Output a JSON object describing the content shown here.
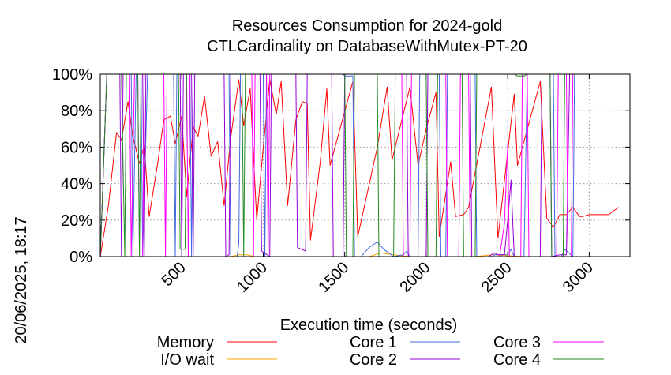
{
  "chart_data": {
    "type": "line",
    "title": "Resources Consumption for 2024-gold",
    "subtitle": "CTLCardinality on DatabaseWithMutex-PT-20",
    "xlabel": "Execution time (seconds)",
    "ylabel": "",
    "timestamp": "20/06/2025, 18:17",
    "xlim": [
      0,
      3250
    ],
    "ylim": [
      0,
      100
    ],
    "x_ticks": [
      500,
      1000,
      1500,
      2000,
      2500,
      3000
    ],
    "y_ticks": [
      0,
      20,
      40,
      60,
      80,
      100
    ],
    "y_tick_labels": [
      "0%",
      "20%",
      "40%",
      "60%",
      "80%",
      "100%"
    ],
    "grid": true,
    "legend_position": "bottom",
    "series": [
      {
        "name": "Memory",
        "color": "#ff0000",
        "points": [
          [
            0,
            0
          ],
          [
            50,
            28
          ],
          [
            100,
            68
          ],
          [
            130,
            64
          ],
          [
            170,
            85
          ],
          [
            200,
            66
          ],
          [
            240,
            51
          ],
          [
            270,
            61
          ],
          [
            300,
            22
          ],
          [
            350,
            50
          ],
          [
            390,
            75
          ],
          [
            430,
            77
          ],
          [
            460,
            62
          ],
          [
            500,
            77
          ],
          [
            530,
            33
          ],
          [
            570,
            71
          ],
          [
            600,
            66
          ],
          [
            640,
            88
          ],
          [
            680,
            55
          ],
          [
            720,
            63
          ],
          [
            760,
            28
          ],
          [
            800,
            65
          ],
          [
            850,
            97
          ],
          [
            880,
            72
          ],
          [
            920,
            92
          ],
          [
            960,
            20
          ],
          [
            1000,
            60
          ],
          [
            1040,
            97
          ],
          [
            1080,
            78
          ],
          [
            1110,
            96
          ],
          [
            1150,
            28
          ],
          [
            1200,
            75
          ],
          [
            1240,
            85
          ],
          [
            1270,
            84
          ],
          [
            1290,
            9
          ],
          [
            1350,
            52
          ],
          [
            1390,
            92
          ],
          [
            1410,
            50
          ],
          [
            1550,
            96
          ],
          [
            1580,
            11
          ],
          [
            1700,
            60
          ],
          [
            1760,
            93
          ],
          [
            1790,
            53
          ],
          [
            1900,
            93
          ],
          [
            1950,
            50
          ],
          [
            2000,
            70
          ],
          [
            2060,
            90
          ],
          [
            2080,
            11
          ],
          [
            2150,
            52
          ],
          [
            2180,
            22
          ],
          [
            2230,
            23
          ],
          [
            2260,
            27
          ],
          [
            2400,
            93
          ],
          [
            2440,
            10
          ],
          [
            2540,
            89
          ],
          [
            2560,
            50
          ],
          [
            2700,
            96
          ],
          [
            2740,
            21
          ],
          [
            2780,
            16
          ],
          [
            2820,
            23
          ],
          [
            2860,
            23
          ],
          [
            2900,
            27
          ],
          [
            2940,
            22
          ],
          [
            2960,
            22
          ],
          [
            3000,
            23
          ],
          [
            3060,
            23
          ],
          [
            3120,
            23
          ],
          [
            3180,
            27
          ]
        ]
      },
      {
        "name": "I/O wait",
        "color": "#ffa500",
        "points": [
          [
            0,
            0
          ],
          [
            200,
            0
          ],
          [
            600,
            0
          ],
          [
            800,
            0
          ],
          [
            850,
            1
          ],
          [
            900,
            1
          ],
          [
            950,
            0
          ],
          [
            1300,
            0
          ],
          [
            1400,
            0
          ],
          [
            1650,
            0
          ],
          [
            1720,
            2
          ],
          [
            1800,
            1
          ],
          [
            1900,
            0
          ],
          [
            2300,
            0
          ],
          [
            2400,
            1
          ],
          [
            2600,
            0
          ],
          [
            2900,
            0
          ],
          [
            3250,
            0
          ]
        ]
      },
      {
        "name": "Core 1",
        "color": "#4169e1",
        "points": [
          [
            0,
            0
          ],
          [
            40,
            100
          ],
          [
            190,
            100
          ],
          [
            200,
            0
          ],
          [
            220,
            100
          ],
          [
            250,
            100
          ],
          [
            260,
            0
          ],
          [
            290,
            100
          ],
          [
            450,
            100
          ],
          [
            460,
            0
          ],
          [
            470,
            100
          ],
          [
            550,
            100
          ],
          [
            560,
            0
          ],
          [
            570,
            100
          ],
          [
            790,
            100
          ],
          [
            800,
            0
          ],
          [
            840,
            0
          ],
          [
            850,
            7
          ],
          [
            860,
            100
          ],
          [
            1000,
            100
          ],
          [
            1010,
            0
          ],
          [
            1020,
            100
          ],
          [
            1440,
            100
          ],
          [
            1490,
            100
          ],
          [
            1500,
            99
          ],
          [
            1550,
            99
          ],
          [
            1560,
            0
          ],
          [
            1600,
            0
          ],
          [
            1650,
            5
          ],
          [
            1700,
            8
          ],
          [
            1740,
            4
          ],
          [
            1800,
            0
          ],
          [
            1860,
            1
          ],
          [
            1880,
            3
          ],
          [
            1900,
            0
          ],
          [
            1950,
            0
          ],
          [
            1960,
            100
          ],
          [
            2080,
            100
          ],
          [
            2090,
            0
          ],
          [
            2120,
            0
          ],
          [
            2130,
            100
          ],
          [
            2300,
            100
          ],
          [
            2310,
            0
          ],
          [
            2400,
            0
          ],
          [
            2420,
            1
          ],
          [
            2500,
            1
          ],
          [
            2520,
            4
          ],
          [
            2540,
            0
          ],
          [
            2600,
            0
          ],
          [
            2620,
            100
          ],
          [
            2780,
            100
          ],
          [
            2790,
            0
          ],
          [
            2830,
            0
          ],
          [
            2850,
            4
          ],
          [
            2900,
            0
          ],
          [
            2910,
            100
          ],
          [
            3250,
            100
          ]
        ]
      },
      {
        "name": "Core 2",
        "color": "#9400d3",
        "points": [
          [
            0,
            0
          ],
          [
            40,
            100
          ],
          [
            120,
            100
          ],
          [
            130,
            0
          ],
          [
            140,
            100
          ],
          [
            260,
            100
          ],
          [
            270,
            0
          ],
          [
            280,
            100
          ],
          [
            490,
            100
          ],
          [
            500,
            0
          ],
          [
            510,
            100
          ],
          [
            560,
            100
          ],
          [
            570,
            0
          ],
          [
            580,
            100
          ],
          [
            760,
            100
          ],
          [
            770,
            0
          ],
          [
            790,
            1
          ],
          [
            800,
            100
          ],
          [
            980,
            100
          ],
          [
            990,
            3
          ],
          [
            1040,
            0
          ],
          [
            1050,
            100
          ],
          [
            1200,
            100
          ],
          [
            1210,
            5
          ],
          [
            1260,
            3
          ],
          [
            1270,
            100
          ],
          [
            1420,
            100
          ],
          [
            1430,
            0
          ],
          [
            1490,
            0
          ],
          [
            1500,
            100
          ],
          [
            1880,
            100
          ],
          [
            1890,
            0
          ],
          [
            2000,
            0
          ],
          [
            2010,
            100
          ],
          [
            2270,
            100
          ],
          [
            2280,
            0
          ],
          [
            2380,
            0
          ],
          [
            2420,
            2
          ],
          [
            2440,
            1
          ],
          [
            2480,
            1
          ],
          [
            2500,
            20
          ],
          [
            2520,
            42
          ],
          [
            2540,
            0
          ],
          [
            2700,
            0
          ],
          [
            2710,
            100
          ],
          [
            2760,
            100
          ],
          [
            2770,
            0
          ],
          [
            2820,
            1
          ],
          [
            2860,
            1
          ],
          [
            2880,
            100
          ],
          [
            3250,
            100
          ]
        ]
      },
      {
        "name": "Core 3",
        "color": "#ff00ff",
        "points": [
          [
            0,
            0
          ],
          [
            40,
            100
          ],
          [
            180,
            100
          ],
          [
            190,
            0
          ],
          [
            210,
            100
          ],
          [
            230,
            100
          ],
          [
            240,
            0
          ],
          [
            260,
            0
          ],
          [
            270,
            100
          ],
          [
            390,
            100
          ],
          [
            400,
            0
          ],
          [
            410,
            100
          ],
          [
            530,
            100
          ],
          [
            540,
            0
          ],
          [
            550,
            100
          ],
          [
            930,
            100
          ],
          [
            940,
            0
          ],
          [
            950,
            100
          ],
          [
            1020,
            100
          ],
          [
            1030,
            0
          ],
          [
            1040,
            100
          ],
          [
            1370,
            100
          ],
          [
            1380,
            100
          ],
          [
            1640,
            100
          ],
          [
            1650,
            100
          ],
          [
            1850,
            100
          ],
          [
            1860,
            0
          ],
          [
            1900,
            0
          ],
          [
            1910,
            100
          ],
          [
            2120,
            100
          ],
          [
            2130,
            0
          ],
          [
            2200,
            0
          ],
          [
            2210,
            100
          ],
          [
            2260,
            100
          ],
          [
            2270,
            0
          ],
          [
            2450,
            0
          ],
          [
            2480,
            18
          ],
          [
            2500,
            62
          ],
          [
            2510,
            0
          ],
          [
            2580,
            0
          ],
          [
            2590,
            100
          ],
          [
            2620,
            100
          ],
          [
            2630,
            0
          ],
          [
            2800,
            0
          ],
          [
            2810,
            100
          ],
          [
            2860,
            100
          ],
          [
            2870,
            0
          ],
          [
            2890,
            0
          ],
          [
            2900,
            100
          ],
          [
            3250,
            100
          ]
        ]
      },
      {
        "name": "Core 4",
        "color": "#228b22",
        "points": [
          [
            0,
            0
          ],
          [
            40,
            100
          ],
          [
            130,
            100
          ],
          [
            150,
            0
          ],
          [
            160,
            100
          ],
          [
            230,
            100
          ],
          [
            240,
            0
          ],
          [
            250,
            100
          ],
          [
            480,
            100
          ],
          [
            490,
            4
          ],
          [
            520,
            4
          ],
          [
            530,
            100
          ],
          [
            870,
            100
          ],
          [
            880,
            0
          ],
          [
            890,
            100
          ],
          [
            1500,
            100
          ],
          [
            1510,
            0
          ],
          [
            1550,
            0
          ],
          [
            1560,
            100
          ],
          [
            1700,
            100
          ],
          [
            1710,
            0
          ],
          [
            1800,
            0
          ],
          [
            1810,
            100
          ],
          [
            2000,
            100
          ],
          [
            2010,
            0
          ],
          [
            2060,
            0
          ],
          [
            2070,
            100
          ],
          [
            2220,
            100
          ],
          [
            2230,
            0
          ],
          [
            2300,
            0
          ],
          [
            2310,
            100
          ],
          [
            2540,
            100
          ],
          [
            2560,
            99
          ],
          [
            2600,
            99
          ],
          [
            2620,
            100
          ],
          [
            2760,
            100
          ],
          [
            2770,
            0
          ],
          [
            2840,
            0
          ],
          [
            2850,
            100
          ],
          [
            3250,
            100
          ]
        ]
      }
    ]
  }
}
